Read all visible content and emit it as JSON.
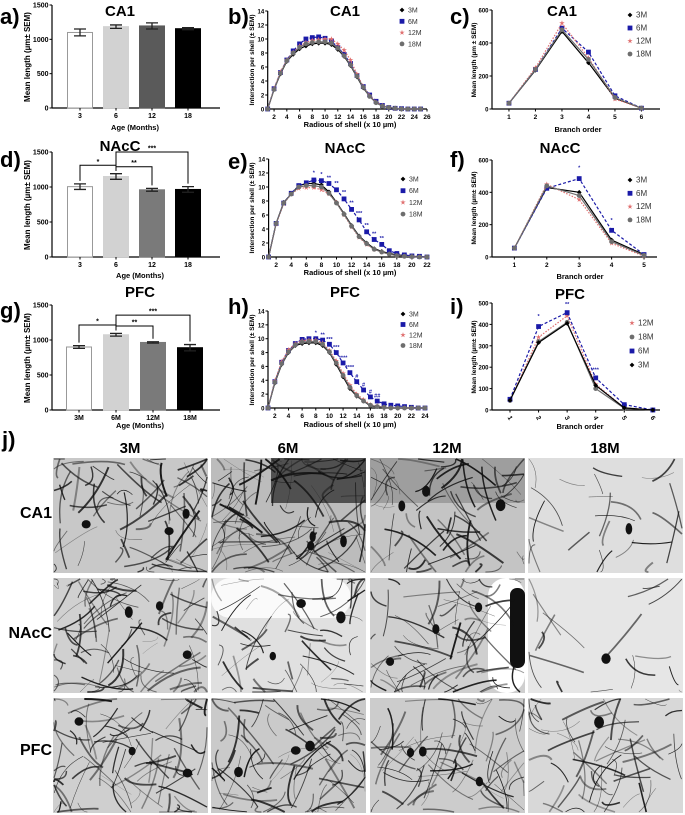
{
  "series_styles": {
    "3M": {
      "color": "#000000",
      "marker": "diamond",
      "dash": "solid"
    },
    "6M": {
      "color": "#1a1aa8",
      "marker": "square",
      "dash": "dashed"
    },
    "12M": {
      "color": "#e07070",
      "marker": "star",
      "dash": "dotted"
    },
    "18M": {
      "color": "#6e6e6e",
      "marker": "circle",
      "dash": "solid"
    }
  },
  "chart_data": [
    {
      "panel_label": "a)",
      "type": "bar",
      "title": "CA1",
      "xlabel": "Age (Months)",
      "ylabel": "Mean length (µm± SEM)",
      "ylim": [
        0,
        1500
      ],
      "yticks": [
        "0",
        "500",
        "1000",
        "1500"
      ],
      "categories": [
        "3",
        "6",
        "12",
        "18"
      ],
      "values": [
        1100,
        1185,
        1195,
        1155
      ],
      "errors": [
        50,
        25,
        45,
        15
      ],
      "colors": [
        "#ffffff",
        "#d2d2d2",
        "#5a5a5a",
        "#000000"
      ],
      "significance": []
    },
    {
      "panel_label": "b)",
      "type": "line",
      "title": "CA1",
      "xlabel": "Radious of shell (x 10 µm)",
      "ylabel": "Intersection per shell (± SEM)",
      "ylim": [
        0,
        14
      ],
      "yticks": [
        "0",
        "2",
        "4",
        "6",
        "8",
        "10",
        "12",
        "14"
      ],
      "xlim": [
        1,
        26
      ],
      "xticks": [
        "2",
        "4",
        "6",
        "8",
        "10",
        "12",
        "14",
        "16",
        "18",
        "20",
        "22",
        "24",
        "26"
      ],
      "x": [
        1,
        2,
        3,
        4,
        5,
        6,
        7,
        8,
        9,
        10,
        11,
        12,
        13,
        14,
        15,
        16,
        17,
        18,
        19,
        20,
        21,
        22,
        23,
        24,
        25
      ],
      "series": [
        {
          "name": "3M",
          "values": [
            0,
            2.8,
            5.0,
            6.8,
            7.8,
            8.6,
            9.0,
            9.3,
            9.4,
            9.4,
            9.2,
            8.5,
            7.5,
            6.2,
            4.6,
            3.0,
            1.8,
            0.9,
            0.4,
            0.2,
            0.1,
            0,
            0,
            0,
            0
          ]
        },
        {
          "name": "6M",
          "values": [
            0,
            2.9,
            5.2,
            7.0,
            8.3,
            9.3,
            10.0,
            10.2,
            10.3,
            10.1,
            9.7,
            8.8,
            7.8,
            6.5,
            4.8,
            3.2,
            2.0,
            1.1,
            0.5,
            0.2,
            0.1,
            0.05,
            0,
            0,
            0
          ]
        },
        {
          "name": "12M",
          "values": [
            0,
            2.9,
            5.3,
            7.0,
            8.1,
            9.0,
            9.5,
            9.8,
            9.9,
            10.0,
            10.0,
            9.3,
            8.4,
            7.0,
            5.0,
            3.2,
            1.9,
            1.0,
            0.5,
            0.2,
            0.1,
            0,
            0,
            0,
            0
          ]
        },
        {
          "name": "18M",
          "values": [
            0,
            2.8,
            5.1,
            6.9,
            8.0,
            8.8,
            9.3,
            9.5,
            9.6,
            9.6,
            9.4,
            8.7,
            7.6,
            6.3,
            4.7,
            3.1,
            1.8,
            0.9,
            0.4,
            0.2,
            0.1,
            0,
            0,
            0,
            0
          ]
        }
      ],
      "annotations": [],
      "legend": "top-right"
    },
    {
      "panel_label": "c)",
      "type": "line",
      "title": "CA1",
      "xlabel": "Branch order",
      "ylabel": "Mean length (µm ± SEM)",
      "ylim": [
        0,
        600
      ],
      "yticks": [
        "0",
        "200",
        "400",
        "600"
      ],
      "xlim": [
        0.36,
        6.7
      ],
      "xticks": [
        "1",
        "2",
        "3",
        "4",
        "5",
        "6"
      ],
      "x": [
        1,
        2,
        3,
        4,
        5,
        6
      ],
      "series": [
        {
          "name": "3M",
          "values": [
            35,
            235,
            470,
            280,
            65,
            5
          ]
        },
        {
          "name": "6M",
          "values": [
            35,
            240,
            490,
            345,
            80,
            5
          ]
        },
        {
          "name": "12M",
          "values": [
            35,
            250,
            520,
            310,
            60,
            5
          ]
        },
        {
          "name": "18M",
          "values": [
            35,
            240,
            480,
            300,
            70,
            5
          ]
        }
      ],
      "annotations": [],
      "legend": "top-right"
    },
    {
      "panel_label": "d)",
      "type": "bar",
      "title": "NAcC",
      "xlabel": "Age (Months)",
      "ylabel": "Mean length (µm± SEM)",
      "ylim": [
        0,
        1500
      ],
      "yticks": [
        "0",
        "500",
        "1000",
        "1500"
      ],
      "categories": [
        "3",
        "6",
        "12",
        "18"
      ],
      "values": [
        1005,
        1150,
        960,
        965
      ],
      "errors": [
        40,
        40,
        20,
        40
      ],
      "colors": [
        "#ffffff",
        "#d2d2d2",
        "#7a7a7a",
        "#000000"
      ],
      "significance": [
        {
          "from": 0,
          "to": 1,
          "label": "*",
          "level": 1310
        },
        {
          "from": 1,
          "to": 2,
          "label": "**",
          "level": 1290
        },
        {
          "from": 1,
          "to": 3,
          "label": "***",
          "level": 1500
        }
      ]
    },
    {
      "panel_label": "e)",
      "type": "line",
      "title": "NAcC",
      "xlabel": "Radious of shell (x 10 µm)",
      "ylabel": "Intersection per shell (± SEM)",
      "ylim": [
        0,
        14
      ],
      "yticks": [
        "0",
        "2",
        "4",
        "6",
        "8",
        "10",
        "12",
        "14"
      ],
      "xlim": [
        1,
        22
      ],
      "xticks": [
        "2",
        "4",
        "6",
        "8",
        "10",
        "12",
        "14",
        "16",
        "18",
        "20",
        "22"
      ],
      "x": [
        1,
        2,
        3,
        4,
        5,
        6,
        7,
        8,
        9,
        10,
        11,
        12,
        13,
        14,
        15,
        16,
        17,
        18,
        19,
        20,
        21,
        22
      ],
      "series": [
        {
          "name": "3M",
          "values": [
            0,
            4.8,
            7.8,
            9.0,
            10.2,
            10.5,
            10.5,
            10.3,
            9.3,
            7.8,
            6.2,
            4.5,
            3.0,
            2.0,
            1.2,
            0.8,
            0.5,
            0.3,
            0.2,
            0.1,
            0.05,
            0
          ]
        },
        {
          "name": "6M",
          "values": [
            0,
            4.8,
            7.7,
            9.1,
            10.2,
            10.6,
            11.0,
            10.9,
            10.5,
            9.6,
            8.3,
            6.8,
            5.3,
            3.6,
            2.5,
            1.8,
            0.9,
            0.5,
            0.3,
            0.15,
            0.1,
            0
          ]
        },
        {
          "name": "12M",
          "values": [
            0,
            4.7,
            7.6,
            9.0,
            9.8,
            9.9,
            9.9,
            9.6,
            9.0,
            7.8,
            6.0,
            4.3,
            2.8,
            1.8,
            1.1,
            0.7,
            0.4,
            0.2,
            0.1,
            0.05,
            0,
            0
          ]
        },
        {
          "name": "18M",
          "values": [
            0,
            4.8,
            7.7,
            9.0,
            10.0,
            10.2,
            10.2,
            10.0,
            9.1,
            7.7,
            6.1,
            4.4,
            2.9,
            1.9,
            1.1,
            0.7,
            0.4,
            0.2,
            0.1,
            0.05,
            0,
            0
          ]
        }
      ],
      "annotations": [
        {
          "x": 7,
          "y": 11.8,
          "label": "*"
        },
        {
          "x": 8,
          "y": 11.6,
          "label": "*"
        },
        {
          "x": 9,
          "y": 11.1,
          "label": "**"
        },
        {
          "x": 10,
          "y": 10.3,
          "label": "**"
        },
        {
          "x": 11,
          "y": 9.0,
          "label": "**"
        },
        {
          "x": 12,
          "y": 7.5,
          "label": "**"
        },
        {
          "x": 13,
          "y": 6.0,
          "label": "***"
        },
        {
          "x": 14,
          "y": 4.3,
          "label": "**"
        },
        {
          "x": 15,
          "y": 3.1,
          "label": "**"
        },
        {
          "x": 16,
          "y": 2.4,
          "label": "**"
        }
      ],
      "legend": "right"
    },
    {
      "panel_label": "f)",
      "type": "line",
      "title": "NAcC",
      "xlabel": "Branch order",
      "ylabel": "Mean length (µm± SEM)",
      "ylim": [
        0,
        600
      ],
      "yticks": [
        "0",
        "200",
        "400",
        "600"
      ],
      "xlim": [
        0.31,
        5.4
      ],
      "xticks": [
        "1",
        "2",
        "3",
        "4",
        "5"
      ],
      "x": [
        1,
        2,
        3,
        4,
        5
      ],
      "series": [
        {
          "name": "3M",
          "values": [
            55,
            430,
            400,
            105,
            15
          ]
        },
        {
          "name": "6M",
          "values": [
            55,
            425,
            485,
            165,
            15
          ]
        },
        {
          "name": "12M",
          "values": [
            55,
            450,
            355,
            85,
            5
          ]
        },
        {
          "name": "18M",
          "values": [
            55,
            440,
            380,
            95,
            10
          ]
        }
      ],
      "annotations": [
        {
          "x": 3,
          "y": 540,
          "label": "*"
        },
        {
          "x": 4,
          "y": 215,
          "label": "*"
        }
      ],
      "legend": "right"
    },
    {
      "panel_label": "g)",
      "type": "bar",
      "title": "PFC",
      "xlabel": "Age (Months)",
      "ylabel": "Mean length (µm± SEM)",
      "ylim": [
        0,
        1500
      ],
      "yticks": [
        "0",
        "500",
        "1000",
        "1500"
      ],
      "categories": [
        "3M",
        "6M",
        "12M",
        "18M"
      ],
      "values": [
        900,
        1075,
        965,
        890
      ],
      "errors": [
        20,
        20,
        10,
        45
      ],
      "colors": [
        "#ffffff",
        "#d2d2d2",
        "#7a7a7a",
        "#000000"
      ],
      "significance": [
        {
          "from": 0,
          "to": 1,
          "label": "*",
          "level": 1215
        },
        {
          "from": 1,
          "to": 2,
          "label": "**",
          "level": 1200
        },
        {
          "from": 1,
          "to": 3,
          "label": "***",
          "level": 1355
        }
      ]
    },
    {
      "panel_label": "h)",
      "type": "line",
      "title": "PFC",
      "xlabel": "Radious of shell (x 10 µm)",
      "ylabel": "Intersection per shell (± SEM)",
      "ylim": [
        0,
        14
      ],
      "yticks": [
        "0",
        "2",
        "4",
        "6",
        "8",
        "10",
        "12",
        "14"
      ],
      "xlim": [
        1,
        24
      ],
      "xticks": [
        "2",
        "4",
        "6",
        "8",
        "10",
        "12",
        "14",
        "16",
        "18",
        "20",
        "22",
        "24"
      ],
      "x": [
        1,
        2,
        3,
        4,
        5,
        6,
        7,
        8,
        9,
        10,
        11,
        12,
        13,
        14,
        15,
        16,
        17,
        18,
        19,
        20,
        21,
        22,
        23,
        24
      ],
      "series": [
        {
          "name": "3M",
          "values": [
            0,
            3.6,
            6.3,
            8.0,
            9.0,
            9.3,
            9.4,
            9.4,
            9.0,
            8.0,
            6.3,
            4.5,
            2.8,
            1.7,
            1.0,
            0.3,
            0.2,
            0.1,
            0,
            0,
            0,
            0,
            0,
            0
          ]
        },
        {
          "name": "6M",
          "values": [
            0,
            3.8,
            6.6,
            8.3,
            9.3,
            9.9,
            10.0,
            10.0,
            9.8,
            9.2,
            8.0,
            6.5,
            5.1,
            3.8,
            2.6,
            1.6,
            1.0,
            0.6,
            0.4,
            0.3,
            0.2,
            0.1,
            0,
            0
          ]
        },
        {
          "name": "12M",
          "values": [
            0,
            3.9,
            6.7,
            8.4,
            9.3,
            9.7,
            9.8,
            9.8,
            9.4,
            8.3,
            6.8,
            5.0,
            3.3,
            2.0,
            1.2,
            0.5,
            0.3,
            0.1,
            0,
            0,
            0,
            0,
            0,
            0
          ]
        },
        {
          "name": "18M",
          "values": [
            0,
            3.7,
            6.4,
            8.1,
            9.1,
            9.5,
            9.6,
            9.6,
            9.2,
            8.1,
            6.5,
            4.7,
            3.0,
            1.8,
            1.0,
            0.4,
            0.2,
            0.1,
            0,
            0,
            0,
            0,
            0,
            0
          ]
        }
      ],
      "annotations": [
        {
          "x": 8,
          "y": 10.6,
          "label": "*"
        },
        {
          "x": 9,
          "y": 10.3,
          "label": "**"
        },
        {
          "x": 10,
          "y": 9.7,
          "label": "***"
        },
        {
          "x": 11,
          "y": 8.5,
          "label": "***"
        },
        {
          "x": 12,
          "y": 7.0,
          "label": "****"
        },
        {
          "x": 13,
          "y": 5.6,
          "label": "****"
        },
        {
          "x": 14,
          "y": 4.3,
          "label": "#"
        },
        {
          "x": 15,
          "y": 3.1,
          "label": "#"
        },
        {
          "x": 16,
          "y": 2.1,
          "label": "#"
        },
        {
          "x": 17,
          "y": 1.5,
          "label": "##"
        }
      ],
      "legend": "top-right"
    },
    {
      "panel_label": "i)",
      "type": "line",
      "title": "PFC",
      "xlabel": "Branch order",
      "ylabel": "Mean length (µm± SEM)",
      "ylim": [
        0,
        500
      ],
      "yticks": [
        "0",
        "100",
        "200",
        "300",
        "400",
        "500"
      ],
      "xlim": [
        0.37,
        6.25
      ],
      "xticks": [
        "1",
        "2",
        "3",
        "4",
        "5",
        "6"
      ],
      "x": [
        1,
        2,
        3,
        4,
        5,
        6
      ],
      "series": [
        {
          "name": "12M",
          "values": [
            45,
            340,
            440,
            120,
            10,
            0
          ]
        },
        {
          "name": "18M",
          "values": [
            45,
            320,
            410,
            100,
            8,
            0
          ]
        },
        {
          "name": "6M",
          "values": [
            50,
            390,
            455,
            150,
            25,
            0
          ]
        },
        {
          "name": "3M",
          "values": [
            45,
            315,
            405,
            115,
            10,
            0
          ]
        }
      ],
      "annotations": [
        {
          "x": 2,
          "y": 430,
          "label": "*"
        },
        {
          "x": 3,
          "y": 485,
          "label": "**"
        },
        {
          "x": 4,
          "y": 180,
          "label": "***"
        }
      ],
      "legend": "right"
    }
  ],
  "micrographs": {
    "panel_label": "j)",
    "columns": [
      "3M",
      "6M",
      "12M",
      "18M"
    ],
    "rows": [
      "CA1",
      "NAcC",
      "PFC"
    ]
  }
}
